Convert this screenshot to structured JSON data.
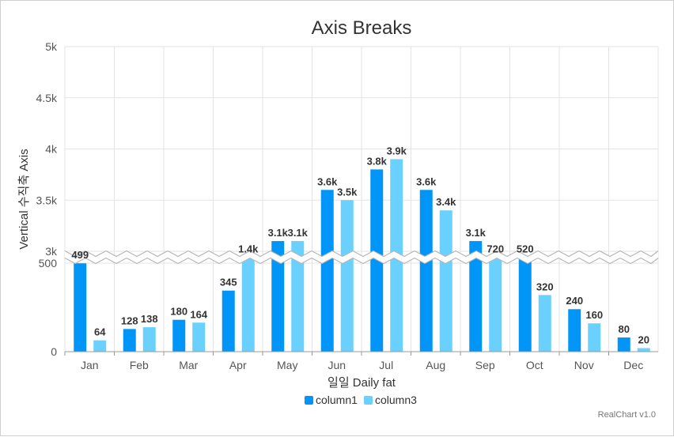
{
  "chart_data": {
    "type": "bar",
    "title": "Axis Breaks",
    "xlabel": "일일 Daily fat",
    "ylabel": "Vertical 수직축 Axis",
    "categories": [
      "Jan",
      "Feb",
      "Mar",
      "Apr",
      "May",
      "Jun",
      "Jul",
      "Aug",
      "Sep",
      "Oct",
      "Nov",
      "Dec"
    ],
    "series": [
      {
        "name": "column1",
        "color": "#0095f6",
        "values": [
          499,
          128,
          180,
          345,
          3100,
          3600,
          3800,
          3600,
          3100,
          520,
          240,
          80
        ],
        "labels": [
          "499",
          "128",
          "180",
          "345",
          "3.1k",
          "3.6k",
          "3.8k",
          "3.6k",
          "3.1k",
          "520",
          "240",
          "80"
        ]
      },
      {
        "name": "column3",
        "color": "#6ad1ff",
        "values": [
          64,
          138,
          164,
          1400,
          3100,
          3500,
          3900,
          3400,
          720,
          320,
          160,
          20
        ],
        "labels": [
          "64",
          "138",
          "164",
          "1.4k",
          "3.1k",
          "3.5k",
          "3.9k",
          "3.4k",
          "720",
          "320",
          "160",
          "20"
        ]
      }
    ],
    "axis_break": {
      "from": 500,
      "to": 3000
    },
    "lower_ticks": [
      {
        "value": 0,
        "label": "0"
      },
      {
        "value": 500,
        "label": "500"
      }
    ],
    "upper_ticks": [
      {
        "value": 3000,
        "label": "3k"
      },
      {
        "value": 3500,
        "label": "3.5k"
      },
      {
        "value": 4000,
        "label": "4k"
      },
      {
        "value": 4500,
        "label": "4.5k"
      },
      {
        "value": 5000,
        "label": "5k"
      }
    ],
    "ylim": [
      0,
      5000
    ],
    "grid": true,
    "legend_position": "bottom"
  },
  "credit": "RealChart v1.0"
}
